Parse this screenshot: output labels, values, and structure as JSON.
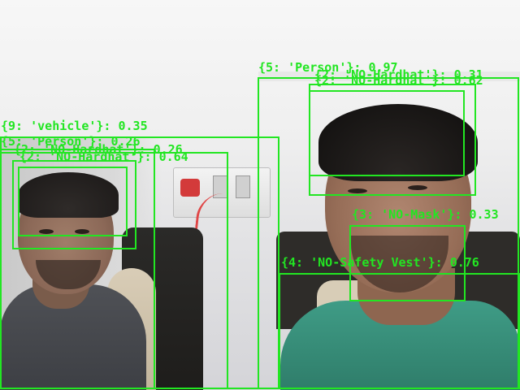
{
  "detections": [
    {
      "label": "{5: 'Person'}: 0.97"
    },
    {
      "label": "{2: 'NO-Hardhat'}: 0.31"
    },
    {
      "label": "{2: 'NO-Hardhat'}: 0.62"
    },
    {
      "label": "{9: 'vehicle'}: 0.35"
    },
    {
      "label": "{5: 'Person'}: 0.26"
    },
    {
      "label": "{2: 'NO-Hardhat'}: 0.26"
    },
    {
      "label": "{2: 'NO-Hardhat'}: 0.64"
    },
    {
      "label": "{3: 'NO-Mask'}: 0.33"
    },
    {
      "label": "{4: 'NO-Safety Vest'}: 0.76"
    }
  ],
  "colors": {
    "box": "#22e622"
  }
}
